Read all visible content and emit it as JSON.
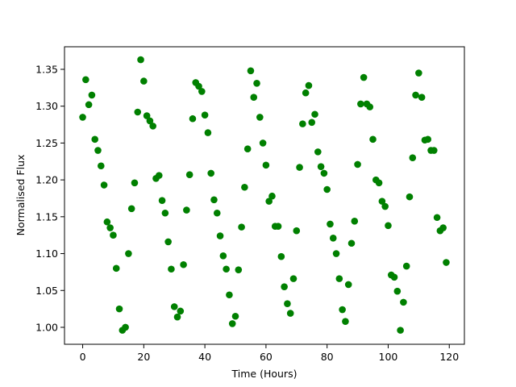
{
  "chart_data": {
    "type": "scatter",
    "xlabel": "Time (Hours)",
    "ylabel": "Normalised Flux",
    "color": "#008000",
    "x": [
      0,
      1,
      2,
      3,
      4,
      5,
      6,
      7,
      8,
      9,
      10,
      11,
      12,
      13,
      14,
      15,
      16,
      17,
      18,
      19,
      20,
      21,
      22,
      23,
      24,
      25,
      26,
      27,
      28,
      29,
      30,
      31,
      32,
      33,
      34,
      35,
      36,
      37,
      38,
      39,
      40,
      41,
      42,
      43,
      44,
      45,
      46,
      47,
      48,
      49,
      50,
      51,
      52,
      53,
      54,
      55,
      56,
      57,
      58,
      59,
      60,
      61,
      62,
      63,
      64,
      65,
      66,
      67,
      68,
      69,
      70,
      71,
      72,
      73,
      74,
      75,
      76,
      77,
      78,
      79,
      80,
      81,
      82,
      83,
      84,
      85,
      86,
      87,
      88,
      89,
      90,
      91,
      92,
      93,
      94,
      95,
      96,
      97,
      98,
      99,
      100,
      101,
      102,
      103,
      104,
      105,
      106,
      107,
      108,
      109,
      110,
      111,
      112,
      113,
      114,
      115,
      116,
      117,
      118,
      119
    ],
    "values": [
      1.285,
      1.336,
      1.302,
      1.315,
      1.255,
      1.24,
      1.219,
      1.193,
      1.143,
      1.135,
      1.125,
      1.08,
      1.025,
      0.996,
      1.0,
      1.1,
      1.161,
      1.196,
      1.292,
      1.363,
      1.334,
      1.287,
      1.28,
      1.273,
      1.202,
      1.206,
      1.172,
      1.155,
      1.116,
      1.079,
      1.028,
      1.014,
      1.022,
      1.085,
      1.159,
      1.207,
      1.283,
      1.332,
      1.327,
      1.32,
      1.288,
      1.264,
      1.209,
      1.173,
      1.155,
      1.124,
      1.097,
      1.079,
      1.044,
      1.005,
      1.015,
      1.078,
      1.136,
      1.19,
      1.242,
      1.348,
      1.312,
      1.331,
      1.285,
      1.25,
      1.22,
      1.171,
      1.178,
      1.137,
      1.137,
      1.096,
      1.055,
      1.032,
      1.019,
      1.066,
      1.131,
      1.217,
      1.276,
      1.318,
      1.328,
      1.278,
      1.289,
      1.238,
      1.218,
      1.209,
      1.187,
      1.14,
      1.121,
      1.1,
      1.066,
      1.024,
      1.008,
      1.058,
      1.114,
      1.144,
      1.221,
      1.303,
      1.339,
      1.303,
      1.299,
      1.255,
      1.2,
      1.196,
      1.171,
      1.164,
      1.138,
      1.071,
      1.068,
      1.049,
      0.996,
      1.034,
      1.083,
      1.177,
      1.23,
      1.315,
      1.345,
      1.312,
      1.254,
      1.255,
      1.24,
      1.24,
      1.149,
      1.131,
      1.135,
      1.088
    ],
    "xlim": [
      -5.95,
      124.95
    ],
    "xticks": [
      0,
      20,
      40,
      60,
      80,
      100,
      120
    ],
    "ylim": [
      0.977,
      1.3806
    ],
    "yticks": [
      {
        "value": 1,
        "label": "1.00"
      },
      1.05,
      {
        "value": 1.1,
        "label": "1.10"
      },
      1.15,
      {
        "value": 1.2,
        "label": "1.20"
      },
      1.25,
      {
        "value": 1.3,
        "label": "1.30"
      },
      1.35
    ]
  }
}
